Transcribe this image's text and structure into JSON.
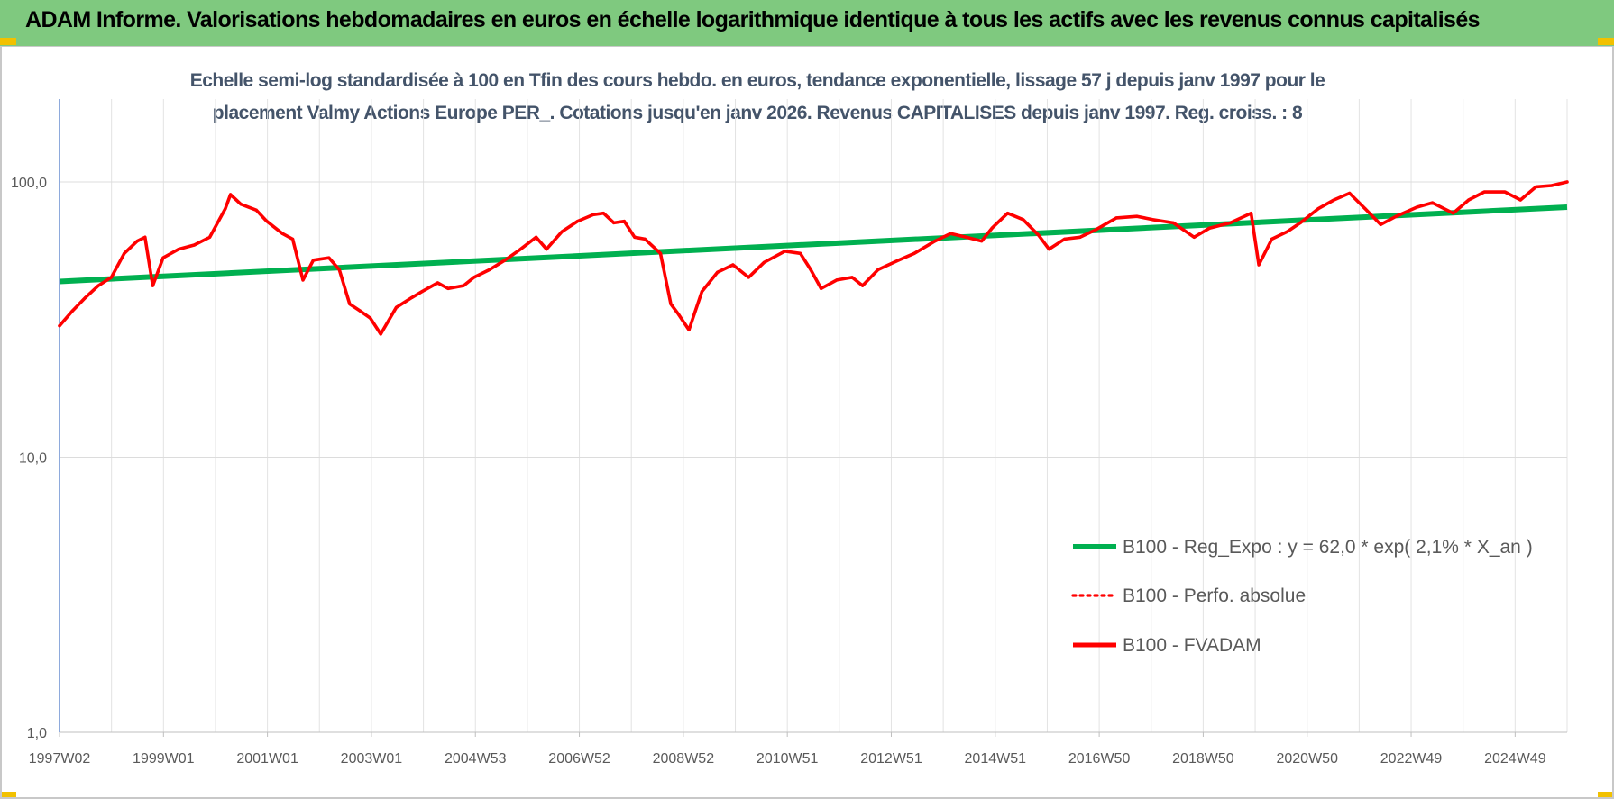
{
  "header": {
    "title": "ADAM Informe. Valorisations hebdomadaires en euros en échelle logarithmique identique à tous les actifs avec les revenus connus capitalisés",
    "background_color": "#7fc97f"
  },
  "chart_data": {
    "type": "line",
    "title_line1": "Echelle semi-log standardisée à 100 en Tfin des cours hebdo. en euros, tendance exponentielle, lissage 57 j depuis janv 1997 pour le",
    "title_line2": "placement Valmy Actions Europe PER_. Cotations jusqu'en janv 2026. Revenus CAPITALISES depuis janv 1997. Reg. croiss. : 8",
    "y_scale": "log",
    "ylim": [
      1,
      100
    ],
    "y_ticks": [
      "100,0",
      "10,0",
      "1,0"
    ],
    "y_tick_values": [
      100,
      10,
      1
    ],
    "x_ticks": [
      "1997W02",
      "1999W01",
      "2001W01",
      "2003W01",
      "2004W53",
      "2006W52",
      "2008W52",
      "2010W51",
      "2012W51",
      "2014W51",
      "2016W50",
      "2018W50",
      "2020W50",
      "2022W49",
      "2024W49"
    ],
    "x_range_years": [
      1997.0,
      2026.1
    ],
    "grid": true,
    "legend_position": "bottom-right",
    "series": [
      {
        "name": "B100 - Reg_Expo : y = 62,0 * exp( 2,1% *  X_an )",
        "color": "#00b050",
        "style": "solid",
        "endpoints": [
          [
            1997.0,
            43.5
          ],
          [
            2026.1,
            81.0
          ]
        ]
      },
      {
        "name": "B100 - Perfo. absolue",
        "color": "#ff0000",
        "style": "dotted",
        "points": []
      },
      {
        "name": "B100 - FVADAM",
        "color": "#ff0000",
        "style": "solid",
        "points": [
          [
            1997.0,
            30
          ],
          [
            1997.25,
            34
          ],
          [
            1997.5,
            38
          ],
          [
            1997.75,
            42
          ],
          [
            1998.0,
            45
          ],
          [
            1998.25,
            55
          ],
          [
            1998.5,
            61
          ],
          [
            1998.65,
            63
          ],
          [
            1998.8,
            42
          ],
          [
            1999.0,
            53
          ],
          [
            1999.3,
            57
          ],
          [
            1999.6,
            59
          ],
          [
            1999.9,
            63
          ],
          [
            2000.2,
            80
          ],
          [
            2000.3,
            90
          ],
          [
            2000.5,
            83
          ],
          [
            2000.8,
            79
          ],
          [
            2001.0,
            72
          ],
          [
            2001.3,
            65
          ],
          [
            2001.5,
            62
          ],
          [
            2001.7,
            44
          ],
          [
            2001.9,
            52
          ],
          [
            2002.2,
            53
          ],
          [
            2002.4,
            48
          ],
          [
            2002.6,
            36
          ],
          [
            2002.8,
            34
          ],
          [
            2003.0,
            32
          ],
          [
            2003.2,
            28
          ],
          [
            2003.5,
            35
          ],
          [
            2003.8,
            38
          ],
          [
            2004.0,
            40
          ],
          [
            2004.3,
            43
          ],
          [
            2004.5,
            41
          ],
          [
            2004.8,
            42
          ],
          [
            2005.0,
            45
          ],
          [
            2005.3,
            48
          ],
          [
            2005.6,
            52
          ],
          [
            2005.9,
            57
          ],
          [
            2006.2,
            63
          ],
          [
            2006.4,
            57
          ],
          [
            2006.7,
            66
          ],
          [
            2007.0,
            72
          ],
          [
            2007.3,
            76
          ],
          [
            2007.5,
            77
          ],
          [
            2007.7,
            71
          ],
          [
            2007.9,
            72
          ],
          [
            2008.1,
            63
          ],
          [
            2008.3,
            62
          ],
          [
            2008.6,
            55
          ],
          [
            2008.8,
            36
          ],
          [
            2008.95,
            33
          ],
          [
            2009.15,
            29
          ],
          [
            2009.4,
            40
          ],
          [
            2009.7,
            47
          ],
          [
            2010.0,
            50
          ],
          [
            2010.3,
            45
          ],
          [
            2010.6,
            51
          ],
          [
            2011.0,
            56
          ],
          [
            2011.3,
            55
          ],
          [
            2011.5,
            48
          ],
          [
            2011.7,
            41
          ],
          [
            2012.0,
            44
          ],
          [
            2012.3,
            45
          ],
          [
            2012.5,
            42
          ],
          [
            2012.8,
            48
          ],
          [
            2013.2,
            52
          ],
          [
            2013.5,
            55
          ],
          [
            2013.9,
            61
          ],
          [
            2014.2,
            65
          ],
          [
            2014.5,
            63
          ],
          [
            2014.8,
            61
          ],
          [
            2015.0,
            68
          ],
          [
            2015.3,
            77
          ],
          [
            2015.6,
            73
          ],
          [
            2015.9,
            64
          ],
          [
            2016.1,
            57
          ],
          [
            2016.4,
            62
          ],
          [
            2016.7,
            63
          ],
          [
            2017.0,
            67
          ],
          [
            2017.4,
            74
          ],
          [
            2017.8,
            75
          ],
          [
            2018.1,
            73
          ],
          [
            2018.5,
            71
          ],
          [
            2018.9,
            63
          ],
          [
            2019.2,
            68
          ],
          [
            2019.6,
            71
          ],
          [
            2020.0,
            77
          ],
          [
            2020.15,
            50
          ],
          [
            2020.4,
            62
          ],
          [
            2020.7,
            66
          ],
          [
            2020.95,
            71
          ],
          [
            2021.3,
            80
          ],
          [
            2021.6,
            86
          ],
          [
            2021.9,
            91
          ],
          [
            2022.2,
            80
          ],
          [
            2022.5,
            70
          ],
          [
            2022.8,
            75
          ],
          [
            2023.2,
            81
          ],
          [
            2023.5,
            84
          ],
          [
            2023.9,
            77
          ],
          [
            2024.2,
            86
          ],
          [
            2024.5,
            92
          ],
          [
            2024.9,
            92
          ],
          [
            2025.2,
            86
          ],
          [
            2025.5,
            96
          ],
          [
            2025.8,
            97
          ],
          [
            2026.1,
            100
          ]
        ]
      }
    ]
  }
}
